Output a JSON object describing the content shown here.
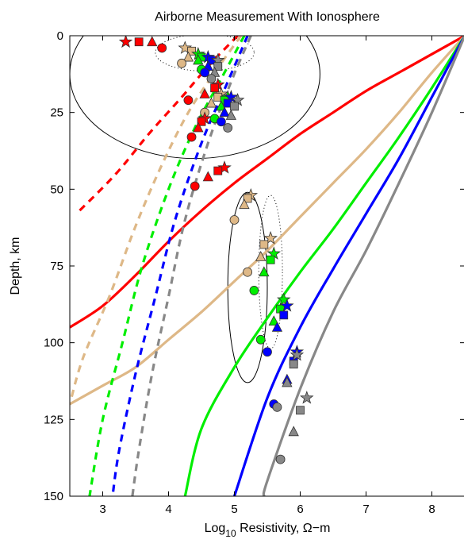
{
  "chart_data": {
    "type": "line",
    "title": "Airborne Measurement With Ionosphere",
    "xlabel_prefix": "Log",
    "xlabel_sub": "10",
    "xlabel_suffix": " Resistivity, Ω−m",
    "ylabel": "Depth, km",
    "xlim": [
      2.5,
      8.5
    ],
    "ylim": [
      0,
      150
    ],
    "y_reversed": true,
    "xticks": [
      3,
      4,
      5,
      6,
      7,
      8
    ],
    "yticks": [
      0,
      25,
      50,
      75,
      100,
      125,
      150
    ],
    "grid": false,
    "legend": "none",
    "colors": {
      "red": "#ff0000",
      "tan": "#deb887",
      "green": "#00ee00",
      "blue": "#0000ff",
      "gray": "#888888"
    },
    "curves": [
      {
        "color": "red",
        "style": "solid",
        "points": [
          [
            8.5,
            0
          ],
          [
            8.0,
            6
          ],
          [
            7.5,
            12
          ],
          [
            7.0,
            18
          ],
          [
            6.5,
            25
          ],
          [
            6.0,
            32
          ],
          [
            5.5,
            40
          ],
          [
            5.0,
            48
          ],
          [
            4.5,
            57
          ],
          [
            4.0,
            67
          ],
          [
            3.5,
            78
          ],
          [
            3.0,
            88
          ],
          [
            2.5,
            95
          ]
        ]
      },
      {
        "color": "tan",
        "style": "solid",
        "points": [
          [
            8.5,
            0
          ],
          [
            8.0,
            12
          ],
          [
            7.5,
            25
          ],
          [
            7.0,
            37
          ],
          [
            6.5,
            48
          ],
          [
            6.0,
            59
          ],
          [
            5.5,
            70
          ],
          [
            5.0,
            80
          ],
          [
            4.5,
            90
          ],
          [
            4.0,
            99
          ],
          [
            3.5,
            108
          ],
          [
            3.0,
            114
          ],
          [
            2.5,
            120
          ]
        ]
      },
      {
        "color": "green",
        "style": "solid",
        "points": [
          [
            8.5,
            0
          ],
          [
            8.0,
            17
          ],
          [
            7.5,
            33
          ],
          [
            7.0,
            48
          ],
          [
            6.5,
            63
          ],
          [
            6.0,
            77
          ],
          [
            5.5,
            92
          ],
          [
            5.0,
            108
          ],
          [
            4.5,
            128
          ],
          [
            4.25,
            150
          ]
        ]
      },
      {
        "color": "blue",
        "style": "solid",
        "points": [
          [
            8.5,
            0
          ],
          [
            8.0,
            20
          ],
          [
            7.5,
            40
          ],
          [
            7.0,
            58
          ],
          [
            6.5,
            76
          ],
          [
            6.0,
            95
          ],
          [
            5.5,
            118
          ],
          [
            5.0,
            150
          ]
        ]
      },
      {
        "color": "gray",
        "style": "solid",
        "points": [
          [
            8.5,
            0
          ],
          [
            8.0,
            25
          ],
          [
            7.5,
            48
          ],
          [
            7.0,
            70
          ],
          [
            6.5,
            90
          ],
          [
            6.0,
            115
          ],
          [
            5.5,
            145
          ],
          [
            5.45,
            150
          ]
        ]
      },
      {
        "color": "red",
        "style": "dashed",
        "points": [
          [
            5.05,
            0
          ],
          [
            4.6,
            10
          ],
          [
            4.2,
            20
          ],
          [
            3.7,
            32
          ],
          [
            3.2,
            45
          ],
          [
            2.6,
            58
          ]
        ]
      },
      {
        "color": "tan",
        "style": "dashed",
        "points": [
          [
            5.1,
            0
          ],
          [
            4.7,
            12
          ],
          [
            4.3,
            25
          ],
          [
            3.9,
            42
          ],
          [
            3.5,
            62
          ],
          [
            3.1,
            85
          ],
          [
            2.7,
            105
          ],
          [
            2.5,
            120
          ]
        ]
      },
      {
        "color": "green",
        "style": "dashed",
        "points": [
          [
            5.15,
            0
          ],
          [
            4.8,
            14
          ],
          [
            4.4,
            30
          ],
          [
            4.0,
            50
          ],
          [
            3.6,
            75
          ],
          [
            3.3,
            100
          ],
          [
            3.0,
            125
          ],
          [
            2.8,
            150
          ]
        ]
      },
      {
        "color": "blue",
        "style": "dashed",
        "points": [
          [
            5.2,
            0
          ],
          [
            4.9,
            15
          ],
          [
            4.5,
            35
          ],
          [
            4.1,
            60
          ],
          [
            3.8,
            85
          ],
          [
            3.5,
            110
          ],
          [
            3.25,
            135
          ],
          [
            3.15,
            150
          ]
        ]
      },
      {
        "color": "gray",
        "style": "dashed",
        "points": [
          [
            5.25,
            0
          ],
          [
            4.95,
            15
          ],
          [
            4.6,
            35
          ],
          [
            4.25,
            60
          ],
          [
            4.0,
            85
          ],
          [
            3.75,
            110
          ],
          [
            3.55,
            135
          ],
          [
            3.45,
            150
          ]
        ]
      }
    ],
    "ellipses": [
      {
        "cx": 4.4,
        "cy": 12.5,
        "rx": 1.9,
        "ry": 27.5,
        "style": "solid"
      },
      {
        "cx": 4.55,
        "cy": 5.5,
        "rx": 0.75,
        "ry": 6,
        "style": "dotted"
      },
      {
        "cx": 5.2,
        "cy": 82,
        "rx": 0.3,
        "ry": 31,
        "style": "solid"
      },
      {
        "cx": 5.55,
        "cy": 77,
        "rx": 0.18,
        "ry": 25,
        "style": "dotted"
      }
    ],
    "markers": [
      {
        "x": 3.35,
        "y": 2,
        "shape": "star",
        "color": "red"
      },
      {
        "x": 3.55,
        "y": 2,
        "shape": "square",
        "color": "red"
      },
      {
        "x": 3.75,
        "y": 2,
        "shape": "triangle",
        "color": "red"
      },
      {
        "x": 3.9,
        "y": 4,
        "shape": "circle",
        "color": "red"
      },
      {
        "x": 4.25,
        "y": 4,
        "shape": "star",
        "color": "tan"
      },
      {
        "x": 4.35,
        "y": 5,
        "shape": "square",
        "color": "tan"
      },
      {
        "x": 4.3,
        "y": 7,
        "shape": "triangle",
        "color": "tan"
      },
      {
        "x": 4.2,
        "y": 9,
        "shape": "circle",
        "color": "tan"
      },
      {
        "x": 4.45,
        "y": 6,
        "shape": "star",
        "color": "green"
      },
      {
        "x": 4.5,
        "y": 7,
        "shape": "square",
        "color": "green"
      },
      {
        "x": 4.45,
        "y": 8,
        "shape": "triangle",
        "color": "green"
      },
      {
        "x": 4.5,
        "y": 11,
        "shape": "circle",
        "color": "green"
      },
      {
        "x": 4.6,
        "y": 7,
        "shape": "star",
        "color": "blue"
      },
      {
        "x": 4.65,
        "y": 8,
        "shape": "square",
        "color": "blue"
      },
      {
        "x": 4.6,
        "y": 10,
        "shape": "triangle",
        "color": "blue"
      },
      {
        "x": 4.55,
        "y": 12,
        "shape": "circle",
        "color": "blue"
      },
      {
        "x": 4.75,
        "y": 8,
        "shape": "star",
        "color": "gray"
      },
      {
        "x": 4.75,
        "y": 10,
        "shape": "square",
        "color": "gray"
      },
      {
        "x": 4.7,
        "y": 12,
        "shape": "triangle",
        "color": "gray"
      },
      {
        "x": 4.65,
        "y": 14,
        "shape": "circle",
        "color": "gray"
      },
      {
        "x": 4.75,
        "y": 16,
        "shape": "star",
        "color": "red"
      },
      {
        "x": 4.7,
        "y": 17,
        "shape": "square",
        "color": "red"
      },
      {
        "x": 4.55,
        "y": 19,
        "shape": "triangle",
        "color": "red"
      },
      {
        "x": 4.3,
        "y": 21,
        "shape": "circle",
        "color": "red"
      },
      {
        "x": 4.8,
        "y": 19,
        "shape": "star",
        "color": "tan"
      },
      {
        "x": 4.75,
        "y": 20,
        "shape": "square",
        "color": "tan"
      },
      {
        "x": 4.65,
        "y": 22,
        "shape": "triangle",
        "color": "tan"
      },
      {
        "x": 4.55,
        "y": 25,
        "shape": "circle",
        "color": "tan"
      },
      {
        "x": 4.9,
        "y": 20,
        "shape": "star",
        "color": "green"
      },
      {
        "x": 4.85,
        "y": 21,
        "shape": "square",
        "color": "green"
      },
      {
        "x": 4.8,
        "y": 23,
        "shape": "triangle",
        "color": "green"
      },
      {
        "x": 4.7,
        "y": 27,
        "shape": "circle",
        "color": "green"
      },
      {
        "x": 4.95,
        "y": 20,
        "shape": "star",
        "color": "blue"
      },
      {
        "x": 4.9,
        "y": 22,
        "shape": "square",
        "color": "blue"
      },
      {
        "x": 4.85,
        "y": 25,
        "shape": "triangle",
        "color": "blue"
      },
      {
        "x": 4.8,
        "y": 28,
        "shape": "circle",
        "color": "blue"
      },
      {
        "x": 5.05,
        "y": 21,
        "shape": "star",
        "color": "gray"
      },
      {
        "x": 5.0,
        "y": 23,
        "shape": "square",
        "color": "gray"
      },
      {
        "x": 4.95,
        "y": 26,
        "shape": "triangle",
        "color": "gray"
      },
      {
        "x": 4.9,
        "y": 30,
        "shape": "circle",
        "color": "gray"
      },
      {
        "x": 4.55,
        "y": 27,
        "shape": "star",
        "color": "red"
      },
      {
        "x": 4.5,
        "y": 28,
        "shape": "square",
        "color": "red"
      },
      {
        "x": 4.45,
        "y": 30,
        "shape": "triangle",
        "color": "red"
      },
      {
        "x": 4.35,
        "y": 33,
        "shape": "circle",
        "color": "red"
      },
      {
        "x": 4.85,
        "y": 43,
        "shape": "star",
        "color": "red"
      },
      {
        "x": 4.75,
        "y": 44,
        "shape": "square",
        "color": "red"
      },
      {
        "x": 4.6,
        "y": 46,
        "shape": "triangle",
        "color": "red"
      },
      {
        "x": 4.4,
        "y": 49,
        "shape": "circle",
        "color": "red"
      },
      {
        "x": 5.25,
        "y": 52,
        "shape": "star",
        "color": "tan"
      },
      {
        "x": 5.2,
        "y": 53,
        "shape": "square",
        "color": "tan"
      },
      {
        "x": 5.15,
        "y": 55,
        "shape": "triangle",
        "color": "tan"
      },
      {
        "x": 5.0,
        "y": 60,
        "shape": "circle",
        "color": "tan"
      },
      {
        "x": 5.55,
        "y": 66,
        "shape": "star",
        "color": "tan"
      },
      {
        "x": 5.45,
        "y": 68,
        "shape": "square",
        "color": "tan"
      },
      {
        "x": 5.4,
        "y": 72,
        "shape": "triangle",
        "color": "tan"
      },
      {
        "x": 5.2,
        "y": 77,
        "shape": "circle",
        "color": "tan"
      },
      {
        "x": 5.6,
        "y": 71,
        "shape": "star",
        "color": "green"
      },
      {
        "x": 5.55,
        "y": 73,
        "shape": "square",
        "color": "green"
      },
      {
        "x": 5.45,
        "y": 77,
        "shape": "triangle",
        "color": "green"
      },
      {
        "x": 5.3,
        "y": 83,
        "shape": "circle",
        "color": "green"
      },
      {
        "x": 5.75,
        "y": 86,
        "shape": "star",
        "color": "green"
      },
      {
        "x": 5.7,
        "y": 89,
        "shape": "square",
        "color": "green"
      },
      {
        "x": 5.6,
        "y": 93,
        "shape": "triangle",
        "color": "green"
      },
      {
        "x": 5.4,
        "y": 99,
        "shape": "circle",
        "color": "green"
      },
      {
        "x": 5.8,
        "y": 88,
        "shape": "star",
        "color": "blue"
      },
      {
        "x": 5.75,
        "y": 91,
        "shape": "square",
        "color": "blue"
      },
      {
        "x": 5.65,
        "y": 95,
        "shape": "triangle",
        "color": "blue"
      },
      {
        "x": 5.5,
        "y": 103,
        "shape": "circle",
        "color": "blue"
      },
      {
        "x": 5.95,
        "y": 103,
        "shape": "star",
        "color": "blue"
      },
      {
        "x": 5.9,
        "y": 106,
        "shape": "square",
        "color": "blue"
      },
      {
        "x": 5.8,
        "y": 112,
        "shape": "triangle",
        "color": "blue"
      },
      {
        "x": 5.6,
        "y": 120,
        "shape": "circle",
        "color": "blue"
      },
      {
        "x": 5.95,
        "y": 104,
        "shape": "star",
        "color": "gray"
      },
      {
        "x": 5.9,
        "y": 107,
        "shape": "square",
        "color": "gray"
      },
      {
        "x": 5.8,
        "y": 113,
        "shape": "triangle",
        "color": "gray"
      },
      {
        "x": 5.65,
        "y": 121,
        "shape": "circle",
        "color": "gray"
      },
      {
        "x": 6.1,
        "y": 118,
        "shape": "star",
        "color": "gray"
      },
      {
        "x": 6.0,
        "y": 122,
        "shape": "square",
        "color": "gray"
      },
      {
        "x": 5.9,
        "y": 129,
        "shape": "triangle",
        "color": "gray"
      },
      {
        "x": 5.7,
        "y": 138,
        "shape": "circle",
        "color": "gray"
      }
    ]
  }
}
